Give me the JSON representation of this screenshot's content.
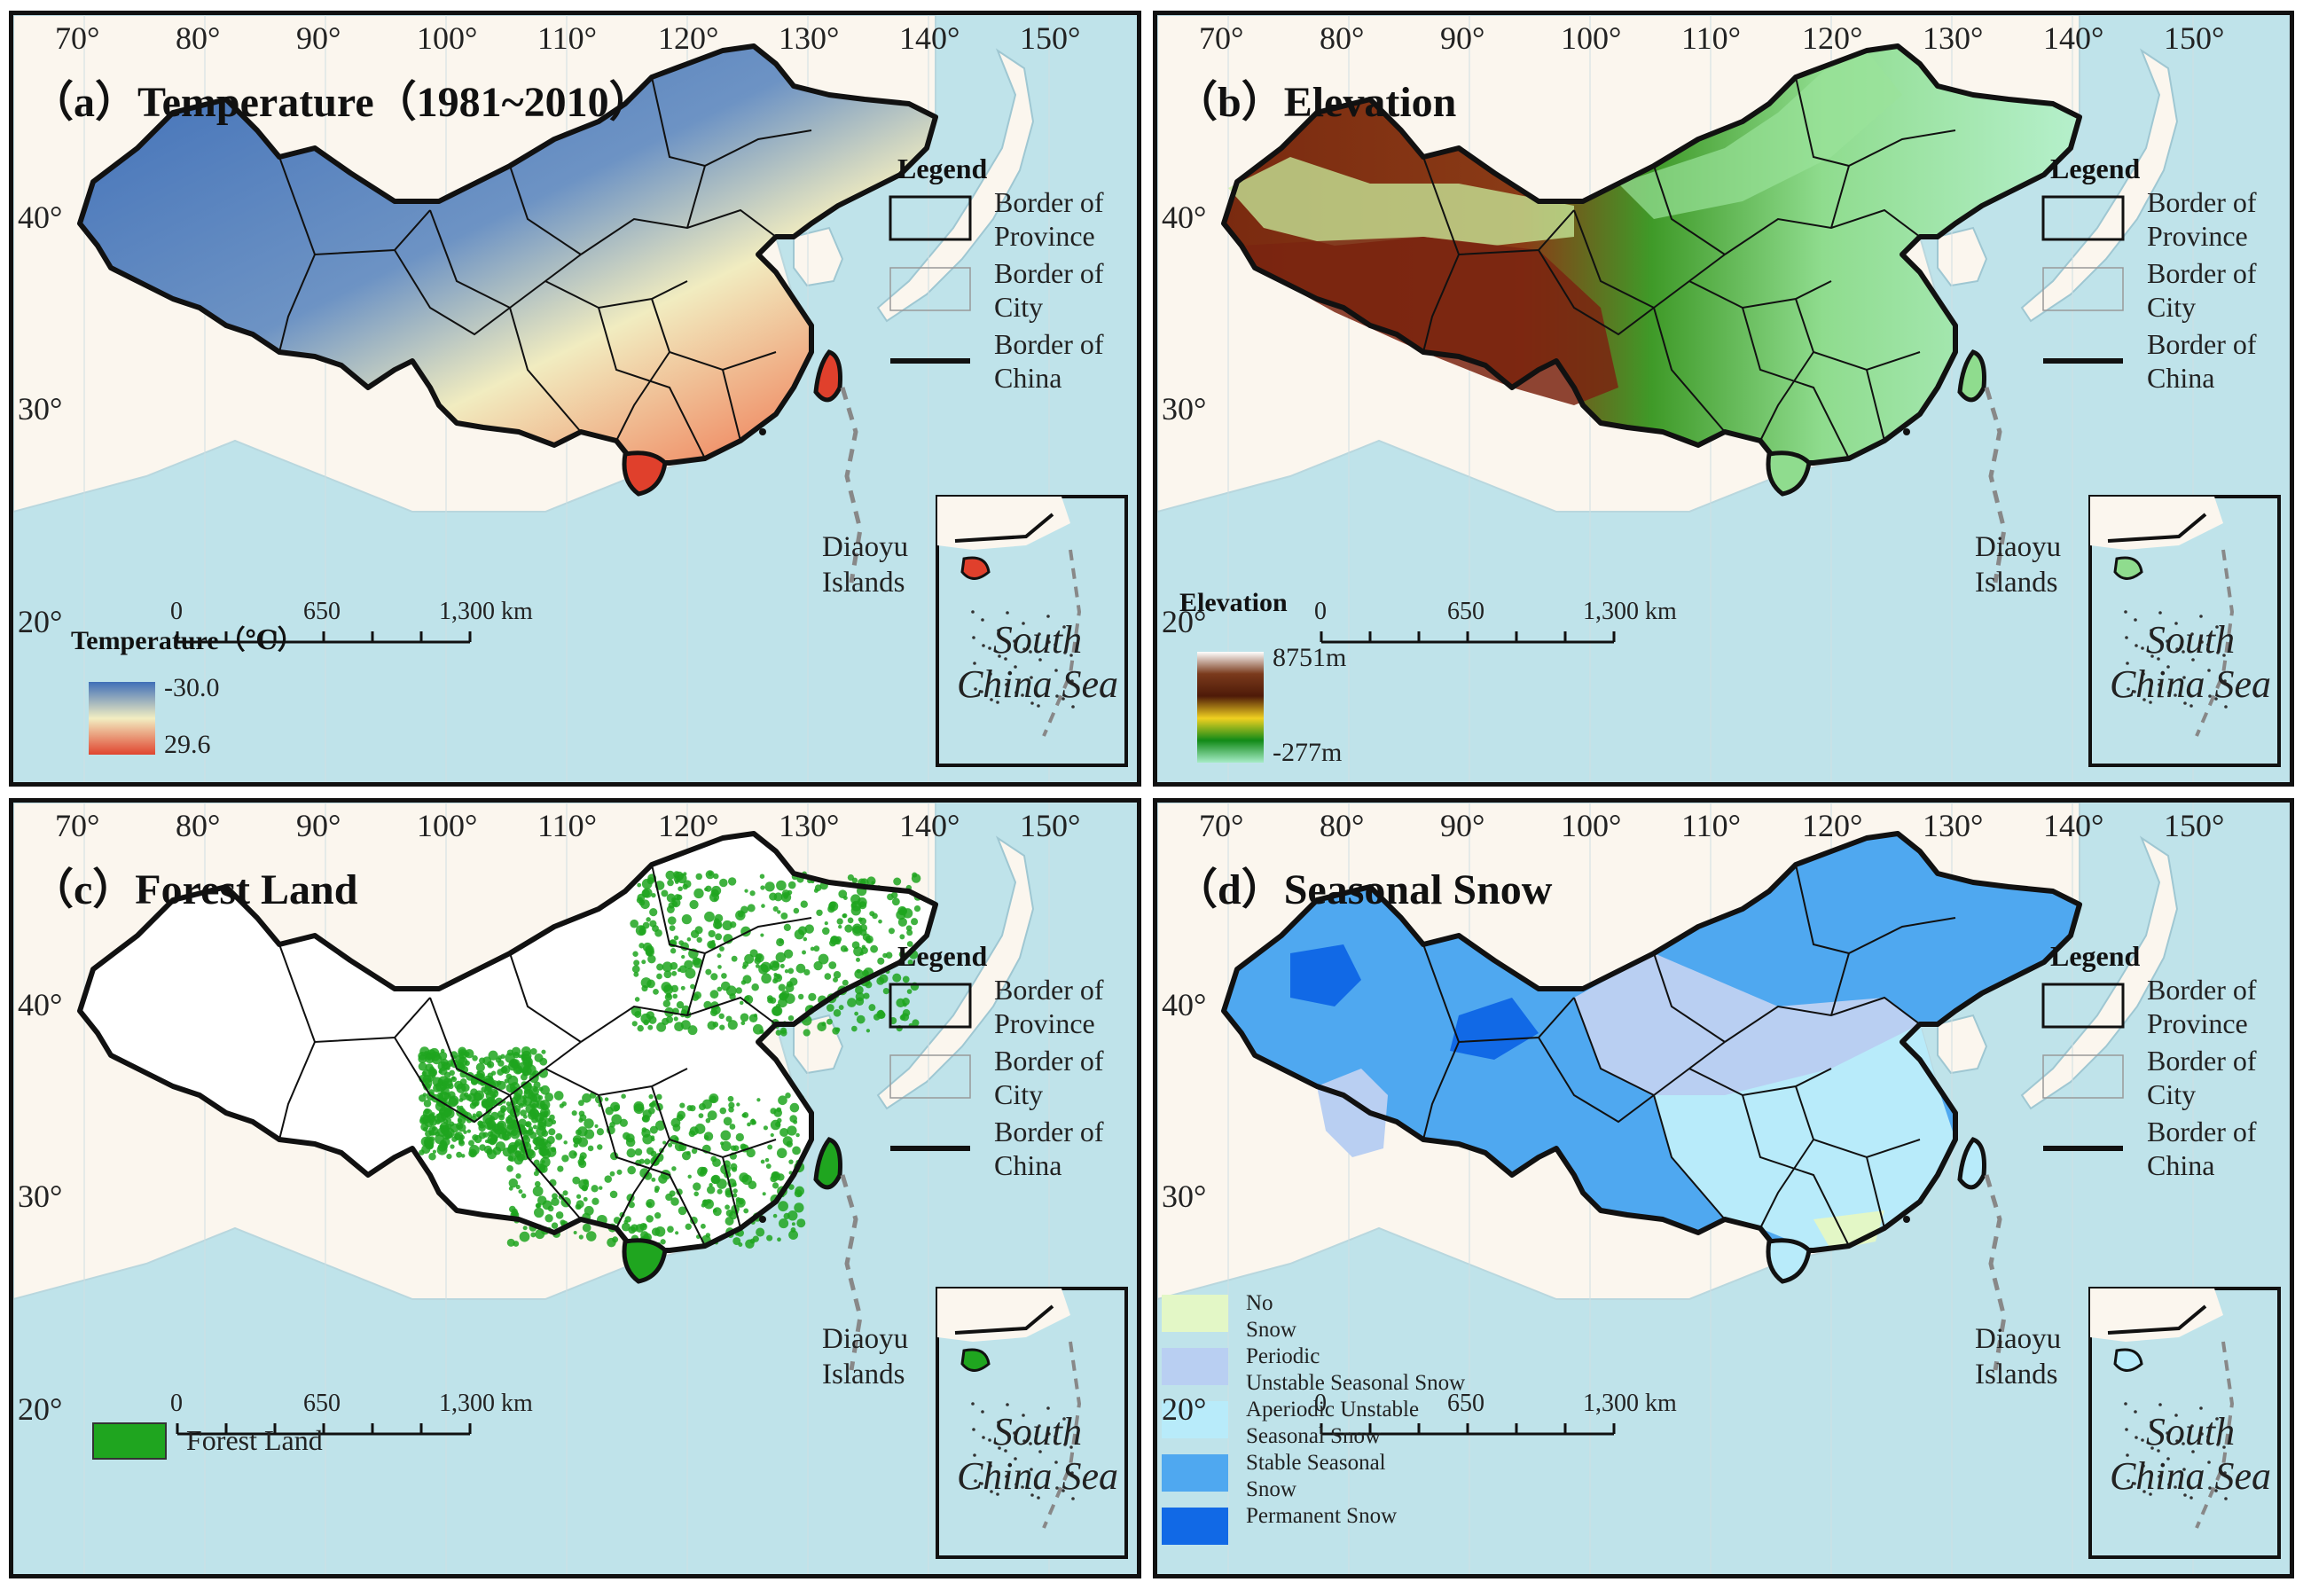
{
  "panels": [
    {
      "id": "a",
      "title": "（a）Temperature（1981~2010）",
      "kind": "temperature",
      "colorbar": {
        "title": "Temperature（℃）",
        "max_label": "-30.0",
        "min_label": "29.6",
        "colors": [
          "#3f6fb8",
          "#f2eec2",
          "#e0452f"
        ]
      }
    },
    {
      "id": "b",
      "title": "（b）Elevation",
      "kind": "elevation",
      "colorbar": {
        "title": "Elevation",
        "max_label": "8751m",
        "min_label": "-277m",
        "colors": [
          "#ffffff",
          "#7a3a1c",
          "#4e1a08",
          "#f0d020",
          "#118a18",
          "#a6ecc6"
        ]
      }
    },
    {
      "id": "c",
      "title": "（c）Forest Land",
      "kind": "forest",
      "forest_legend": {
        "label": "Forest Land",
        "color": "#1fa51f"
      }
    },
    {
      "id": "d",
      "title": "（d）Seasonal Snow",
      "kind": "snow",
      "snow_legend": [
        {
          "label": "No\nSnow",
          "color": "#e3f7c6"
        },
        {
          "label": "Periodic\nUnstable Seasonal Snow",
          "color": "#b9cff2"
        },
        {
          "label": "Aperiodic Unstable\nSeasonal Snow",
          "color": "#b8ebfa"
        },
        {
          "label": "Stable Seasonal\nSnow",
          "color": "#4fa8f0"
        },
        {
          "label": "Permanent Snow",
          "color": "#1169e6"
        }
      ]
    }
  ],
  "longitude_ticks": [
    "70°",
    "80°",
    "90°",
    "100°",
    "110°",
    "120°",
    "130°",
    "140°",
    "150°"
  ],
  "latitude_ticks": [
    "40°",
    "30°",
    "20°"
  ],
  "legend": {
    "title": "Legend",
    "province": "Border of\nProvince",
    "city": "Border of\nCity",
    "china": "Border of\nChina"
  },
  "diaoyu": "Diaoyu\nIslands",
  "south_china_sea": "South\nChina Sea",
  "scale": {
    "zero": "0",
    "mid": "650",
    "end": "1,300 km"
  }
}
